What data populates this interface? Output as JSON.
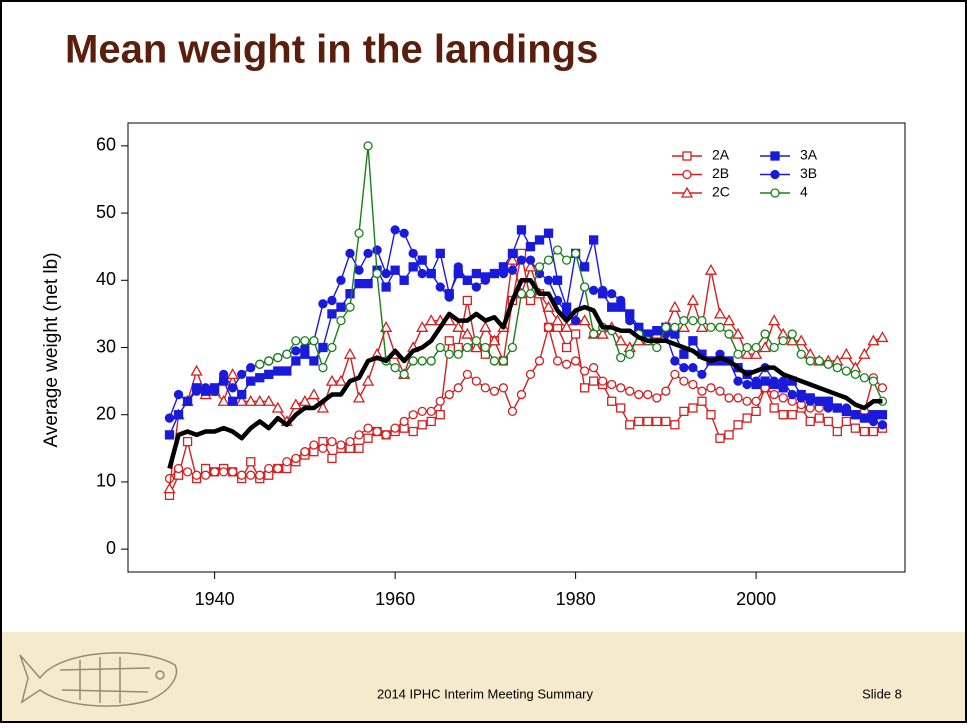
{
  "chart_data": {
    "type": "line",
    "title": "Mean weight in the landings",
    "y_label": "Average weight (net lb)",
    "x": [
      1935,
      1936,
      1937,
      1938,
      1939,
      1940,
      1941,
      1942,
      1943,
      1944,
      1945,
      1946,
      1947,
      1948,
      1949,
      1950,
      1951,
      1952,
      1953,
      1954,
      1955,
      1956,
      1957,
      1958,
      1959,
      1960,
      1961,
      1962,
      1963,
      1964,
      1965,
      1966,
      1967,
      1968,
      1969,
      1970,
      1971,
      1972,
      1973,
      1974,
      1975,
      1976,
      1977,
      1978,
      1979,
      1980,
      1981,
      1982,
      1983,
      1984,
      1985,
      1986,
      1987,
      1988,
      1989,
      1990,
      1991,
      1992,
      1993,
      1994,
      1995,
      1996,
      1997,
      1998,
      1999,
      2000,
      2001,
      2002,
      2003,
      2004,
      2005,
      2006,
      2007,
      2008,
      2009,
      2010,
      2011,
      2012,
      2013,
      2014
    ],
    "series": [
      {
        "name": "2A",
        "color": "#d42020",
        "marker": "open-square",
        "values": [
          8,
          11,
          16,
          10.5,
          12,
          11.5,
          12,
          11.5,
          10.5,
          13,
          10.5,
          11,
          12,
          12,
          13,
          14,
          14.5,
          16,
          13.5,
          15,
          15,
          15,
          16.5,
          17.5,
          17,
          17.5,
          18,
          17.5,
          18.5,
          19,
          20,
          31,
          30,
          37,
          30,
          29,
          31,
          28,
          37,
          44,
          37,
          38,
          33,
          33,
          30,
          32,
          24,
          25,
          24.5,
          22,
          21,
          18.5,
          19,
          19,
          19,
          19,
          18.5,
          20.5,
          21,
          22,
          20,
          16.5,
          17,
          18.5,
          19.5,
          20.5,
          24,
          21,
          20,
          20,
          21,
          19,
          19.5,
          19,
          17.5,
          19,
          18,
          17.5,
          17.5,
          18
        ]
      },
      {
        "name": "2B",
        "color": "#d42020",
        "marker": "open-circle",
        "values": [
          10.5,
          12,
          11.5,
          11,
          11,
          11.5,
          11.5,
          11.5,
          11,
          11,
          11,
          12,
          12,
          13,
          13.5,
          14.5,
          15.5,
          15,
          16,
          15.5,
          16,
          17,
          18,
          17.5,
          17,
          18,
          19,
          20,
          20.5,
          20.5,
          22,
          23,
          24,
          26,
          25,
          24,
          23.5,
          24,
          20.5,
          23,
          26,
          28,
          33,
          28,
          27.5,
          28,
          26.5,
          27,
          25,
          24.5,
          24,
          23.5,
          23,
          23,
          22.5,
          23.5,
          26,
          25,
          24.5,
          23.5,
          24,
          23.5,
          22.5,
          22.5,
          22,
          22,
          24,
          23,
          22.5,
          22,
          21.5,
          21,
          21,
          22,
          21,
          20.5,
          20,
          20.5,
          25.5,
          24
        ]
      },
      {
        "name": "2C",
        "color": "#d42020",
        "marker": "open-triangle",
        "values": [
          9,
          20,
          22,
          26.5,
          23,
          23.5,
          22,
          26,
          22,
          22,
          22,
          22,
          21,
          19,
          21.5,
          22,
          23,
          21,
          25,
          25,
          29,
          22.5,
          25,
          29,
          33,
          29,
          26,
          30,
          33,
          34,
          34,
          34,
          33,
          32,
          30,
          33,
          31,
          33,
          43,
          38,
          42,
          38,
          36,
          34,
          33,
          34,
          34,
          32,
          32,
          33,
          31,
          30,
          31,
          31,
          32,
          33,
          36,
          33,
          37,
          33,
          41.5,
          35,
          34,
          32,
          29,
          29,
          30,
          34,
          32,
          31,
          31,
          29,
          28,
          28,
          28,
          29,
          27,
          29,
          31,
          31.5
        ]
      },
      {
        "name": "3A",
        "color": "#1a1adb",
        "marker": "filled-square",
        "values": [
          17,
          20,
          22,
          24,
          23.5,
          24,
          25,
          22,
          23,
          25,
          25.5,
          26,
          26.5,
          26.5,
          28,
          29,
          28,
          30,
          35,
          36,
          38,
          39.5,
          39.5,
          41.5,
          39,
          41.5,
          40,
          42,
          43,
          41,
          44,
          38,
          41,
          40,
          41,
          40.5,
          41,
          42,
          44,
          47.5,
          45,
          46,
          47,
          40,
          36,
          44,
          42,
          46,
          38,
          36,
          36,
          35,
          33,
          32,
          32.5,
          33,
          32,
          29,
          31,
          29,
          28,
          28,
          28,
          27,
          26,
          24.5,
          25,
          24.5,
          24,
          25,
          23,
          22.5,
          22,
          22,
          21,
          20.5,
          20,
          19.5,
          20,
          20
        ]
      },
      {
        "name": "3B",
        "color": "#1a1adb",
        "marker": "filled-circle",
        "values": [
          19.5,
          23,
          22,
          23.5,
          24,
          23.5,
          26,
          24,
          26,
          27,
          27.5,
          28,
          28.5,
          29,
          29.5,
          30,
          31,
          36.5,
          37,
          40,
          44,
          41.5,
          44,
          44.5,
          41,
          47.5,
          47,
          44,
          41,
          41,
          39,
          37.5,
          42,
          40,
          39,
          40,
          41,
          41,
          41.5,
          43,
          43,
          41,
          40,
          37,
          35,
          34,
          39,
          38.5,
          38.5,
          38,
          37,
          34,
          33,
          32,
          32.5,
          32,
          28,
          27,
          27,
          26,
          28,
          29,
          28,
          25,
          24.5,
          25,
          27,
          25,
          25,
          23,
          22.5,
          22,
          22,
          21,
          21,
          21,
          20,
          19.5,
          19,
          18.5
        ]
      },
      {
        "name": "4",
        "color": "#1a801a",
        "marker": "open-circle",
        "values": [
          null,
          null,
          null,
          null,
          null,
          null,
          null,
          null,
          null,
          null,
          27.5,
          28,
          28.5,
          29,
          31,
          31,
          31,
          27,
          30,
          34,
          36,
          47,
          60,
          41,
          28,
          27,
          26,
          28,
          28,
          28,
          30,
          29,
          29,
          30,
          31,
          30,
          28,
          28,
          30,
          38,
          38,
          42,
          43,
          44.5,
          43,
          44,
          39,
          32,
          33,
          32.5,
          28.5,
          29,
          32,
          31,
          30,
          33,
          33,
          34,
          34,
          34,
          33,
          33,
          32,
          29,
          30,
          30,
          32,
          30,
          31,
          32,
          29,
          28,
          28,
          27.5,
          27,
          26.5,
          26,
          25.5,
          25,
          22
        ]
      },
      {
        "color": "#000000",
        "marker": "none",
        "linewidth": 4.5,
        "values": [
          12,
          17,
          17.5,
          17,
          17.5,
          17.5,
          18,
          17.5,
          16.5,
          18,
          19,
          18,
          19.5,
          18.5,
          20,
          21,
          21,
          22,
          23,
          23,
          25,
          25.5,
          28,
          28.5,
          28,
          29.5,
          28,
          29.5,
          30,
          31,
          33,
          35,
          34,
          34,
          35,
          34,
          34.5,
          33,
          37,
          40,
          40,
          38,
          38,
          35.5,
          34,
          35.5,
          36,
          35.5,
          33,
          33,
          32.5,
          32.5,
          31.5,
          31,
          31,
          31,
          30.5,
          30,
          29.5,
          28.5,
          28,
          28.5,
          28,
          27,
          26,
          26.5,
          27,
          27,
          26,
          25.5,
          25,
          24.5,
          24,
          23.5,
          23,
          22.5,
          21.5,
          21,
          22,
          22
        ]
      }
    ],
    "xlim": [
      1930.4,
      2016.5
    ],
    "ylim": [
      -3.4,
      63.4
    ],
    "xticks": [
      1940,
      1960,
      1980,
      2000
    ],
    "yticks": [
      0,
      10,
      20,
      30,
      40,
      50,
      60
    ],
    "grid": false,
    "legend": "top-right"
  },
  "footer": {
    "text": "2014 IPHC Interim Meeting Summary",
    "slide": "Slide 8"
  }
}
